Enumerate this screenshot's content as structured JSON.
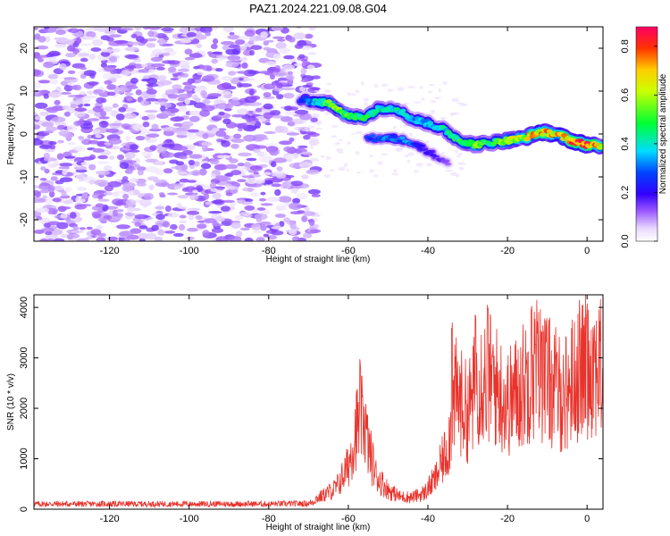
{
  "figure": {
    "title": "PAZ1.2024.221.09.08.G04"
  },
  "chart_data": [
    {
      "type": "heatmap",
      "xlabel": "Height of straight line (km)",
      "ylabel": "Frequency (Hz)",
      "xlim": [
        -139,
        4
      ],
      "ylim": [
        -25,
        25
      ],
      "xticks": [
        -120,
        -100,
        -80,
        -60,
        -40,
        -20,
        0
      ],
      "yticks": [
        -20,
        -10,
        0,
        10,
        20
      ],
      "colorbar": {
        "label": "Normalized spectral amplitude",
        "range": [
          0,
          0.88
        ],
        "ticks": [
          0.0,
          0.2,
          0.4,
          0.6,
          0.8
        ],
        "colormap": "rainbow (white → violet → blue → cyan → green → yellow → red)"
      },
      "noise_region": {
        "x_range": [
          -139,
          -68
        ],
        "y_range": [
          -25,
          25
        ],
        "amplitude": 0.08
      },
      "signal_ridge": [
        {
          "x": -72,
          "y": 8,
          "amp": 0.25
        },
        {
          "x": -68,
          "y": 7.5,
          "amp": 0.35
        },
        {
          "x": -64,
          "y": 7,
          "amp": 0.55
        },
        {
          "x": -60,
          "y": 4,
          "amp": 0.5
        },
        {
          "x": -56,
          "y": 4,
          "amp": 0.45
        },
        {
          "x": -52,
          "y": 6,
          "amp": 0.4
        },
        {
          "x": -48,
          "y": 6,
          "amp": 0.4
        },
        {
          "x": -44,
          "y": 3.5,
          "amp": 0.35
        },
        {
          "x": -40,
          "y": 2.5,
          "amp": 0.35
        },
        {
          "x": -36,
          "y": 1,
          "amp": 0.4
        },
        {
          "x": -32,
          "y": -1.5,
          "amp": 0.45
        },
        {
          "x": -28,
          "y": -2.5,
          "amp": 0.5
        },
        {
          "x": -24,
          "y": -2,
          "amp": 0.45
        },
        {
          "x": -20,
          "y": -1.5,
          "amp": 0.55
        },
        {
          "x": -16,
          "y": -1,
          "amp": 0.6
        },
        {
          "x": -12,
          "y": 0.5,
          "amp": 0.7
        },
        {
          "x": -8,
          "y": 0,
          "amp": 0.65
        },
        {
          "x": -4,
          "y": -1.5,
          "amp": 0.75
        },
        {
          "x": 0,
          "y": -2.5,
          "amp": 0.8
        },
        {
          "x": 4,
          "y": -3,
          "amp": 0.6
        }
      ],
      "secondary_ridge": [
        {
          "x": -55,
          "y": -1,
          "amp": 0.25
        },
        {
          "x": -50,
          "y": -1,
          "amp": 0.3
        },
        {
          "x": -45,
          "y": -1.5,
          "amp": 0.3
        },
        {
          "x": -40,
          "y": -4,
          "amp": 0.2
        },
        {
          "x": -35,
          "y": -7,
          "amp": 0.12
        }
      ]
    },
    {
      "type": "line",
      "xlabel": "Height of straight line (km)",
      "ylabel": "SNR (10 * v/v)",
      "xlim": [
        -139,
        4
      ],
      "ylim": [
        0,
        4250
      ],
      "xticks": [
        -120,
        -100,
        -80,
        -60,
        -40,
        -20,
        0
      ],
      "yticks": [
        0,
        1000,
        2000,
        3000,
        4000
      ],
      "color": "#e8332c",
      "envelope": [
        {
          "x": -139,
          "y": 130
        },
        {
          "x": -120,
          "y": 130
        },
        {
          "x": -100,
          "y": 130
        },
        {
          "x": -80,
          "y": 130
        },
        {
          "x": -70,
          "y": 140
        },
        {
          "x": -66,
          "y": 300
        },
        {
          "x": -63,
          "y": 450
        },
        {
          "x": -60,
          "y": 900
        },
        {
          "x": -58,
          "y": 1700
        },
        {
          "x": -56,
          "y": 1900
        },
        {
          "x": -55,
          "y": 1300
        },
        {
          "x": -53,
          "y": 700
        },
        {
          "x": -50,
          "y": 400
        },
        {
          "x": -47,
          "y": 260
        },
        {
          "x": -44,
          "y": 250
        },
        {
          "x": -41,
          "y": 330
        },
        {
          "x": -38,
          "y": 650
        },
        {
          "x": -35,
          "y": 1300
        },
        {
          "x": -33,
          "y": 2400
        },
        {
          "x": -30,
          "y": 2000
        },
        {
          "x": -27,
          "y": 2800
        },
        {
          "x": -24,
          "y": 2700
        },
        {
          "x": -20,
          "y": 2200
        },
        {
          "x": -16,
          "y": 2600
        },
        {
          "x": -13,
          "y": 3000
        },
        {
          "x": -10,
          "y": 2700
        },
        {
          "x": -6,
          "y": 2350
        },
        {
          "x": -2,
          "y": 2900
        },
        {
          "x": 2,
          "y": 3100
        },
        {
          "x": 4,
          "y": 2800
        }
      ],
      "peaks": [
        {
          "x": -57,
          "y": 3000
        },
        {
          "x": -34,
          "y": 3800
        },
        {
          "x": -28,
          "y": 4050
        },
        {
          "x": -25,
          "y": 4100
        },
        {
          "x": -14,
          "y": 4200
        },
        {
          "x": -11,
          "y": 3800
        },
        {
          "x": 0,
          "y": 4100
        }
      ]
    }
  ]
}
